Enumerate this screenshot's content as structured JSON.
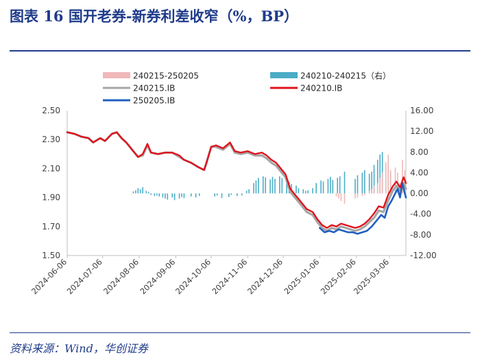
{
  "header": {
    "title": "图表 16   国开老券-新券利差收窄（%，BP）"
  },
  "footer": {
    "source": "资料来源：Wind，华创证券"
  },
  "colors": {
    "title_blue": "#1f3b8a",
    "spread_left_bar": "#f0b8b8",
    "spread_right_bar": "#4bacc6",
    "series_240215": "#a6a6a6",
    "series_240210": "#e0141e",
    "series_250205": "#1f5fbf"
  },
  "chart_data": {
    "type": "line",
    "x_tick_labels": [
      "2024-06-06",
      "2024-07-06",
      "2024-08-06",
      "2024-09-06",
      "2024-10-06",
      "2024-11-06",
      "2024-12-06",
      "2025-01-06",
      "2025-02-06",
      "2025-03-06"
    ],
    "x_range": [
      "2024-06-06",
      "2025-03-20"
    ],
    "left_axis": {
      "ticks": [
        "1.50",
        "1.70",
        "1.90",
        "2.10",
        "2.30",
        "2.50"
      ],
      "ylim": [
        1.5,
        2.5
      ]
    },
    "right_axis": {
      "ticks": [
        "-12.00",
        "-8.00",
        "-4.00",
        "0.00",
        "4.00",
        "8.00",
        "12.00",
        "16.00"
      ],
      "ylim": [
        -12,
        16
      ]
    },
    "legend": [
      {
        "key": "spread_left",
        "label": "240215-250205",
        "kind": "bar"
      },
      {
        "key": "spread_right",
        "label": "240210-240215（右）",
        "kind": "bar"
      },
      {
        "key": "s240215",
        "label": "240215.IB",
        "kind": "line"
      },
      {
        "key": "s240210",
        "label": "240210.IB",
        "kind": "line"
      },
      {
        "key": "s250205",
        "label": "250205.IB",
        "kind": "line"
      }
    ],
    "series": [
      {
        "key": "s240210",
        "name": "240210.IB",
        "axis": "left",
        "points": [
          [
            "2024-06-06",
            2.35
          ],
          [
            "2024-06-12",
            2.34
          ],
          [
            "2024-06-18",
            2.32
          ],
          [
            "2024-06-24",
            2.31
          ],
          [
            "2024-06-28",
            2.28
          ],
          [
            "2024-07-04",
            2.31
          ],
          [
            "2024-07-08",
            2.29
          ],
          [
            "2024-07-14",
            2.34
          ],
          [
            "2024-07-18",
            2.35
          ],
          [
            "2024-07-22",
            2.31
          ],
          [
            "2024-07-26",
            2.28
          ],
          [
            "2024-08-01",
            2.22
          ],
          [
            "2024-08-05",
            2.18
          ],
          [
            "2024-08-09",
            2.2
          ],
          [
            "2024-08-13",
            2.27
          ],
          [
            "2024-08-16",
            2.21
          ],
          [
            "2024-08-22",
            2.2
          ],
          [
            "2024-08-28",
            2.21
          ],
          [
            "2024-09-03",
            2.21
          ],
          [
            "2024-09-09",
            2.19
          ],
          [
            "2024-09-13",
            2.16
          ],
          [
            "2024-09-19",
            2.14
          ],
          [
            "2024-09-25",
            2.11
          ],
          [
            "2024-09-30",
            2.09
          ],
          [
            "2024-10-02",
            2.14
          ],
          [
            "2024-10-06",
            2.25
          ],
          [
            "2024-10-10",
            2.26
          ],
          [
            "2024-10-16",
            2.24
          ],
          [
            "2024-10-22",
            2.28
          ],
          [
            "2024-10-26",
            2.22
          ],
          [
            "2024-10-31",
            2.21
          ],
          [
            "2024-11-06",
            2.22
          ],
          [
            "2024-11-12",
            2.2
          ],
          [
            "2024-11-18",
            2.21
          ],
          [
            "2024-11-22",
            2.19
          ],
          [
            "2024-11-26",
            2.16
          ],
          [
            "2024-11-30",
            2.14
          ],
          [
            "2024-12-04",
            2.1
          ],
          [
            "2024-12-08",
            2.06
          ],
          [
            "2024-12-12",
            1.96
          ],
          [
            "2024-12-16",
            1.92
          ],
          [
            "2024-12-20",
            1.88
          ],
          [
            "2024-12-26",
            1.82
          ],
          [
            "2024-12-31",
            1.8
          ],
          [
            "2025-01-04",
            1.75
          ],
          [
            "2025-01-08",
            1.71
          ],
          [
            "2025-01-12",
            1.69
          ],
          [
            "2025-01-16",
            1.71
          ],
          [
            "2025-01-20",
            1.7
          ],
          [
            "2025-01-24",
            1.72
          ],
          [
            "2025-01-28",
            1.71
          ],
          [
            "2025-02-01",
            1.7
          ],
          [
            "2025-02-05",
            1.69
          ],
          [
            "2025-02-09",
            1.7
          ],
          [
            "2025-02-13",
            1.72
          ],
          [
            "2025-02-17",
            1.75
          ],
          [
            "2025-02-21",
            1.79
          ],
          [
            "2025-02-25",
            1.84
          ],
          [
            "2025-03-01",
            1.83
          ],
          [
            "2025-03-05",
            1.92
          ],
          [
            "2025-03-09",
            1.98
          ],
          [
            "2025-03-12",
            2.01
          ],
          [
            "2025-03-15",
            1.97
          ],
          [
            "2025-03-18",
            2.04
          ],
          [
            "2025-03-20",
            2.0
          ]
        ]
      },
      {
        "key": "s240215",
        "name": "240215.IB",
        "axis": "left",
        "points": [
          [
            "2024-06-06",
            2.35
          ],
          [
            "2024-06-12",
            2.34
          ],
          [
            "2024-06-18",
            2.32
          ],
          [
            "2024-06-24",
            2.31
          ],
          [
            "2024-06-28",
            2.28
          ],
          [
            "2024-07-04",
            2.31
          ],
          [
            "2024-07-08",
            2.29
          ],
          [
            "2024-07-14",
            2.34
          ],
          [
            "2024-07-18",
            2.35
          ],
          [
            "2024-07-22",
            2.31
          ],
          [
            "2024-07-26",
            2.28
          ],
          [
            "2024-08-01",
            2.22
          ],
          [
            "2024-08-05",
            2.18
          ],
          [
            "2024-08-09",
            2.19
          ],
          [
            "2024-08-13",
            2.26
          ],
          [
            "2024-08-16",
            2.21
          ],
          [
            "2024-08-22",
            2.2
          ],
          [
            "2024-08-28",
            2.21
          ],
          [
            "2024-09-03",
            2.21
          ],
          [
            "2024-09-09",
            2.18
          ],
          [
            "2024-09-13",
            2.16
          ],
          [
            "2024-09-19",
            2.14
          ],
          [
            "2024-09-25",
            2.11
          ],
          [
            "2024-09-30",
            2.09
          ],
          [
            "2024-10-02",
            2.14
          ],
          [
            "2024-10-06",
            2.25
          ],
          [
            "2024-10-10",
            2.25
          ],
          [
            "2024-10-16",
            2.23
          ],
          [
            "2024-10-22",
            2.27
          ],
          [
            "2024-10-26",
            2.21
          ],
          [
            "2024-10-31",
            2.2
          ],
          [
            "2024-11-06",
            2.21
          ],
          [
            "2024-11-12",
            2.19
          ],
          [
            "2024-11-18",
            2.19
          ],
          [
            "2024-11-22",
            2.17
          ],
          [
            "2024-11-26",
            2.14
          ],
          [
            "2024-11-30",
            2.12
          ],
          [
            "2024-12-04",
            2.08
          ],
          [
            "2024-12-08",
            2.04
          ],
          [
            "2024-12-12",
            1.94
          ],
          [
            "2024-12-16",
            1.9
          ],
          [
            "2024-12-20",
            1.86
          ],
          [
            "2024-12-26",
            1.8
          ],
          [
            "2024-12-31",
            1.78
          ],
          [
            "2025-01-04",
            1.73
          ],
          [
            "2025-01-08",
            1.69
          ],
          [
            "2025-01-12",
            1.67
          ],
          [
            "2025-01-16",
            1.69
          ],
          [
            "2025-01-20",
            1.68
          ],
          [
            "2025-01-24",
            1.7
          ],
          [
            "2025-01-28",
            1.69
          ],
          [
            "2025-02-01",
            1.68
          ],
          [
            "2025-02-05",
            1.67
          ],
          [
            "2025-02-09",
            1.68
          ],
          [
            "2025-02-13",
            1.7
          ],
          [
            "2025-02-17",
            1.73
          ],
          [
            "2025-02-21",
            1.76
          ],
          [
            "2025-02-25",
            1.81
          ],
          [
            "2025-03-01",
            1.8
          ],
          [
            "2025-03-05",
            1.88
          ],
          [
            "2025-03-09",
            1.95
          ],
          [
            "2025-03-12",
            1.98
          ],
          [
            "2025-03-15",
            1.95
          ],
          [
            "2025-03-18",
            2.0
          ],
          [
            "2025-03-20",
            1.96
          ]
        ]
      },
      {
        "key": "s250205",
        "name": "250205.IB",
        "axis": "left",
        "points": [
          [
            "2025-01-06",
            1.69
          ],
          [
            "2025-01-10",
            1.66
          ],
          [
            "2025-01-14",
            1.67
          ],
          [
            "2025-01-18",
            1.66
          ],
          [
            "2025-01-22",
            1.68
          ],
          [
            "2025-01-26",
            1.67
          ],
          [
            "2025-01-30",
            1.66
          ],
          [
            "2025-02-03",
            1.66
          ],
          [
            "2025-02-07",
            1.65
          ],
          [
            "2025-02-11",
            1.66
          ],
          [
            "2025-02-15",
            1.67
          ],
          [
            "2025-02-19",
            1.7
          ],
          [
            "2025-02-23",
            1.74
          ],
          [
            "2025-02-27",
            1.78
          ],
          [
            "2025-03-02",
            1.76
          ],
          [
            "2025-03-05",
            1.84
          ],
          [
            "2025-03-08",
            1.88
          ],
          [
            "2025-03-11",
            1.93
          ],
          [
            "2025-03-13",
            1.96
          ],
          [
            "2025-03-15",
            1.9
          ],
          [
            "2025-03-17",
            2.0
          ],
          [
            "2025-03-19",
            1.93
          ],
          [
            "2025-03-20",
            1.9
          ]
        ]
      }
    ],
    "bar_series": [
      {
        "key": "spread_right",
        "name": "240210-240215（右）",
        "axis": "right",
        "points": [
          [
            "2024-08-01",
            0.4
          ],
          [
            "2024-08-03",
            0.6
          ],
          [
            "2024-08-05",
            1.0
          ],
          [
            "2024-08-07",
            0.8
          ],
          [
            "2024-08-09",
            1.2
          ],
          [
            "2024-08-12",
            0.5
          ],
          [
            "2024-08-14",
            0.3
          ],
          [
            "2024-08-16",
            -0.3
          ],
          [
            "2024-08-19",
            -0.5
          ],
          [
            "2024-08-21",
            -0.4
          ],
          [
            "2024-08-23",
            -0.6
          ],
          [
            "2024-08-26",
            -0.8
          ],
          [
            "2024-08-28",
            -1.0
          ],
          [
            "2024-08-30",
            -1.2
          ],
          [
            "2024-09-03",
            -0.8
          ],
          [
            "2024-09-05",
            -1.3
          ],
          [
            "2024-09-09",
            -1.0
          ],
          [
            "2024-09-11",
            -0.7
          ],
          [
            "2024-09-13",
            -0.9
          ],
          [
            "2024-09-19",
            -0.6
          ],
          [
            "2024-09-23",
            -0.8
          ],
          [
            "2024-09-26",
            -0.5
          ],
          [
            "2024-10-09",
            -0.6
          ],
          [
            "2024-10-11",
            -0.4
          ],
          [
            "2024-10-15",
            -0.9
          ],
          [
            "2024-10-21",
            -0.7
          ],
          [
            "2024-10-23",
            -0.3
          ],
          [
            "2024-10-28",
            -0.5
          ],
          [
            "2024-11-01",
            -0.4
          ],
          [
            "2024-11-05",
            0.5
          ],
          [
            "2024-11-07",
            0.8
          ],
          [
            "2024-11-11",
            2.0
          ],
          [
            "2024-11-13",
            2.5
          ],
          [
            "2024-11-15",
            3.0
          ],
          [
            "2024-11-19",
            3.3
          ],
          [
            "2024-11-21",
            3.1
          ],
          [
            "2024-11-25",
            2.7
          ],
          [
            "2024-11-27",
            3.2
          ],
          [
            "2024-11-29",
            2.8
          ],
          [
            "2024-12-03",
            3.3
          ],
          [
            "2024-12-05",
            3.0
          ],
          [
            "2024-12-09",
            2.6
          ],
          [
            "2024-12-11",
            2.2
          ],
          [
            "2024-12-13",
            1.8
          ],
          [
            "2024-12-17",
            1.5
          ],
          [
            "2024-12-19",
            1.0
          ],
          [
            "2024-12-23",
            0.8
          ],
          [
            "2024-12-25",
            0.5
          ],
          [
            "2024-12-27",
            0.6
          ],
          [
            "2024-12-31",
            1.0
          ],
          [
            "2025-01-03",
            2.0
          ],
          [
            "2025-01-07",
            2.5
          ],
          [
            "2025-01-09",
            2.3
          ],
          [
            "2025-01-13",
            2.8
          ],
          [
            "2025-01-15",
            3.2
          ],
          [
            "2025-01-17",
            2.6
          ],
          [
            "2025-01-21",
            3.0
          ],
          [
            "2025-01-23",
            3.3
          ],
          [
            "2025-01-27",
            4.2
          ],
          [
            "2025-02-05",
            2.8
          ],
          [
            "2025-02-07",
            3.5
          ],
          [
            "2025-02-11",
            4.0
          ],
          [
            "2025-02-13",
            4.5
          ],
          [
            "2025-02-17",
            3.8
          ],
          [
            "2025-02-19",
            4.2
          ],
          [
            "2025-02-21",
            5.5
          ],
          [
            "2025-02-24",
            6.5
          ],
          [
            "2025-02-26",
            7.5
          ],
          [
            "2025-02-28",
            8.0
          ],
          [
            "2025-03-03",
            5.0
          ],
          [
            "2025-03-05",
            6.0
          ],
          [
            "2025-03-07",
            4.2
          ],
          [
            "2025-03-11",
            2.5
          ],
          [
            "2025-03-13",
            1.5
          ],
          [
            "2025-03-17",
            2.0
          ],
          [
            "2025-03-19",
            2.5
          ]
        ]
      },
      {
        "key": "spread_left",
        "name": "240215-250205",
        "axis": "right",
        "points": [
          [
            "2025-01-20",
            -0.6
          ],
          [
            "2025-01-22",
            -1.0
          ],
          [
            "2025-01-24",
            -1.5
          ],
          [
            "2025-01-27",
            -2.0
          ],
          [
            "2025-02-05",
            -1.0
          ],
          [
            "2025-02-07",
            -0.8
          ],
          [
            "2025-02-11",
            -0.5
          ],
          [
            "2025-02-13",
            -0.3
          ],
          [
            "2025-02-17",
            0.5
          ],
          [
            "2025-02-19",
            0.8
          ],
          [
            "2025-02-21",
            1.5
          ],
          [
            "2025-02-24",
            2.0
          ],
          [
            "2025-02-26",
            3.0
          ],
          [
            "2025-02-28",
            4.0
          ],
          [
            "2025-03-03",
            6.0
          ],
          [
            "2025-03-05",
            7.5
          ],
          [
            "2025-03-07",
            4.5
          ],
          [
            "2025-03-11",
            5.0
          ],
          [
            "2025-03-13",
            4.0
          ],
          [
            "2025-03-17",
            6.5
          ],
          [
            "2025-03-19",
            4.5
          ]
        ]
      }
    ]
  }
}
